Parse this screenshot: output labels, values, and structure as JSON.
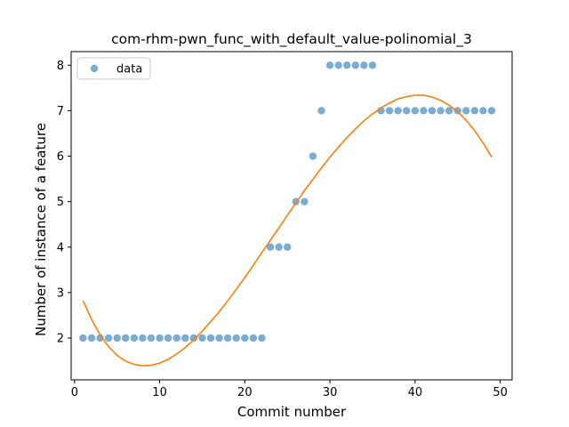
{
  "chart_data": {
    "type": "scatter",
    "title": "com-rhm-pwn_func_with_default_value-polinomial_3",
    "xlabel": "Commit number",
    "ylabel": "Number of instance of a feature",
    "xlim": [
      -0.4,
      51.4
    ],
    "ylim": [
      1.08,
      8.3
    ],
    "xticks": [
      0,
      10,
      20,
      30,
      40,
      50
    ],
    "yticks": [
      2,
      3,
      4,
      5,
      6,
      7,
      8
    ],
    "grid": false,
    "legend": {
      "placement": "top-left",
      "entries": [
        "data"
      ]
    },
    "series": [
      {
        "name": "data",
        "kind": "scatter",
        "color": "#1f77b4",
        "x": [
          1,
          2,
          3,
          4,
          5,
          6,
          7,
          8,
          9,
          10,
          11,
          12,
          13,
          14,
          15,
          16,
          17,
          18,
          19,
          20,
          21,
          22,
          23,
          24,
          25,
          26,
          27,
          28,
          29,
          30,
          31,
          32,
          33,
          34,
          35,
          36,
          37,
          38,
          39,
          40,
          41,
          42,
          43,
          44,
          45,
          46,
          47,
          48,
          49
        ],
        "y": [
          2,
          2,
          2,
          2,
          2,
          2,
          2,
          2,
          2,
          2,
          2,
          2,
          2,
          2,
          2,
          2,
          2,
          2,
          2,
          2,
          2,
          2,
          4,
          4,
          4,
          5,
          5,
          6,
          7,
          8,
          8,
          8,
          8,
          8,
          8,
          7,
          7,
          7,
          7,
          7,
          7,
          7,
          7,
          7,
          7,
          7,
          7,
          7,
          7
        ]
      },
      {
        "kind": "line",
        "color": "#ff7f0e",
        "x": [
          1,
          2,
          3,
          4,
          5,
          6,
          7,
          8,
          9,
          10,
          11,
          12,
          13,
          14,
          15,
          16,
          17,
          18,
          19,
          20,
          21,
          22,
          23,
          24,
          25,
          26,
          27,
          28,
          29,
          30,
          31,
          32,
          33,
          34,
          35,
          36,
          37,
          38,
          39,
          40,
          41,
          42,
          43,
          44,
          45,
          46,
          47,
          48,
          49
        ],
        "y": [
          2.82,
          2.41,
          2.07,
          1.81,
          1.62,
          1.49,
          1.42,
          1.39,
          1.4,
          1.45,
          1.53,
          1.65,
          1.79,
          1.96,
          2.15,
          2.36,
          2.58,
          2.82,
          3.07,
          3.33,
          3.6,
          3.88,
          4.15,
          4.42,
          4.7,
          4.97,
          5.24,
          5.49,
          5.74,
          5.98,
          6.2,
          6.41,
          6.6,
          6.78,
          6.93,
          7.06,
          7.17,
          7.26,
          7.31,
          7.34,
          7.34,
          7.3,
          7.23,
          7.12,
          6.98,
          6.79,
          6.56,
          6.29,
          5.98
        ]
      }
    ]
  }
}
